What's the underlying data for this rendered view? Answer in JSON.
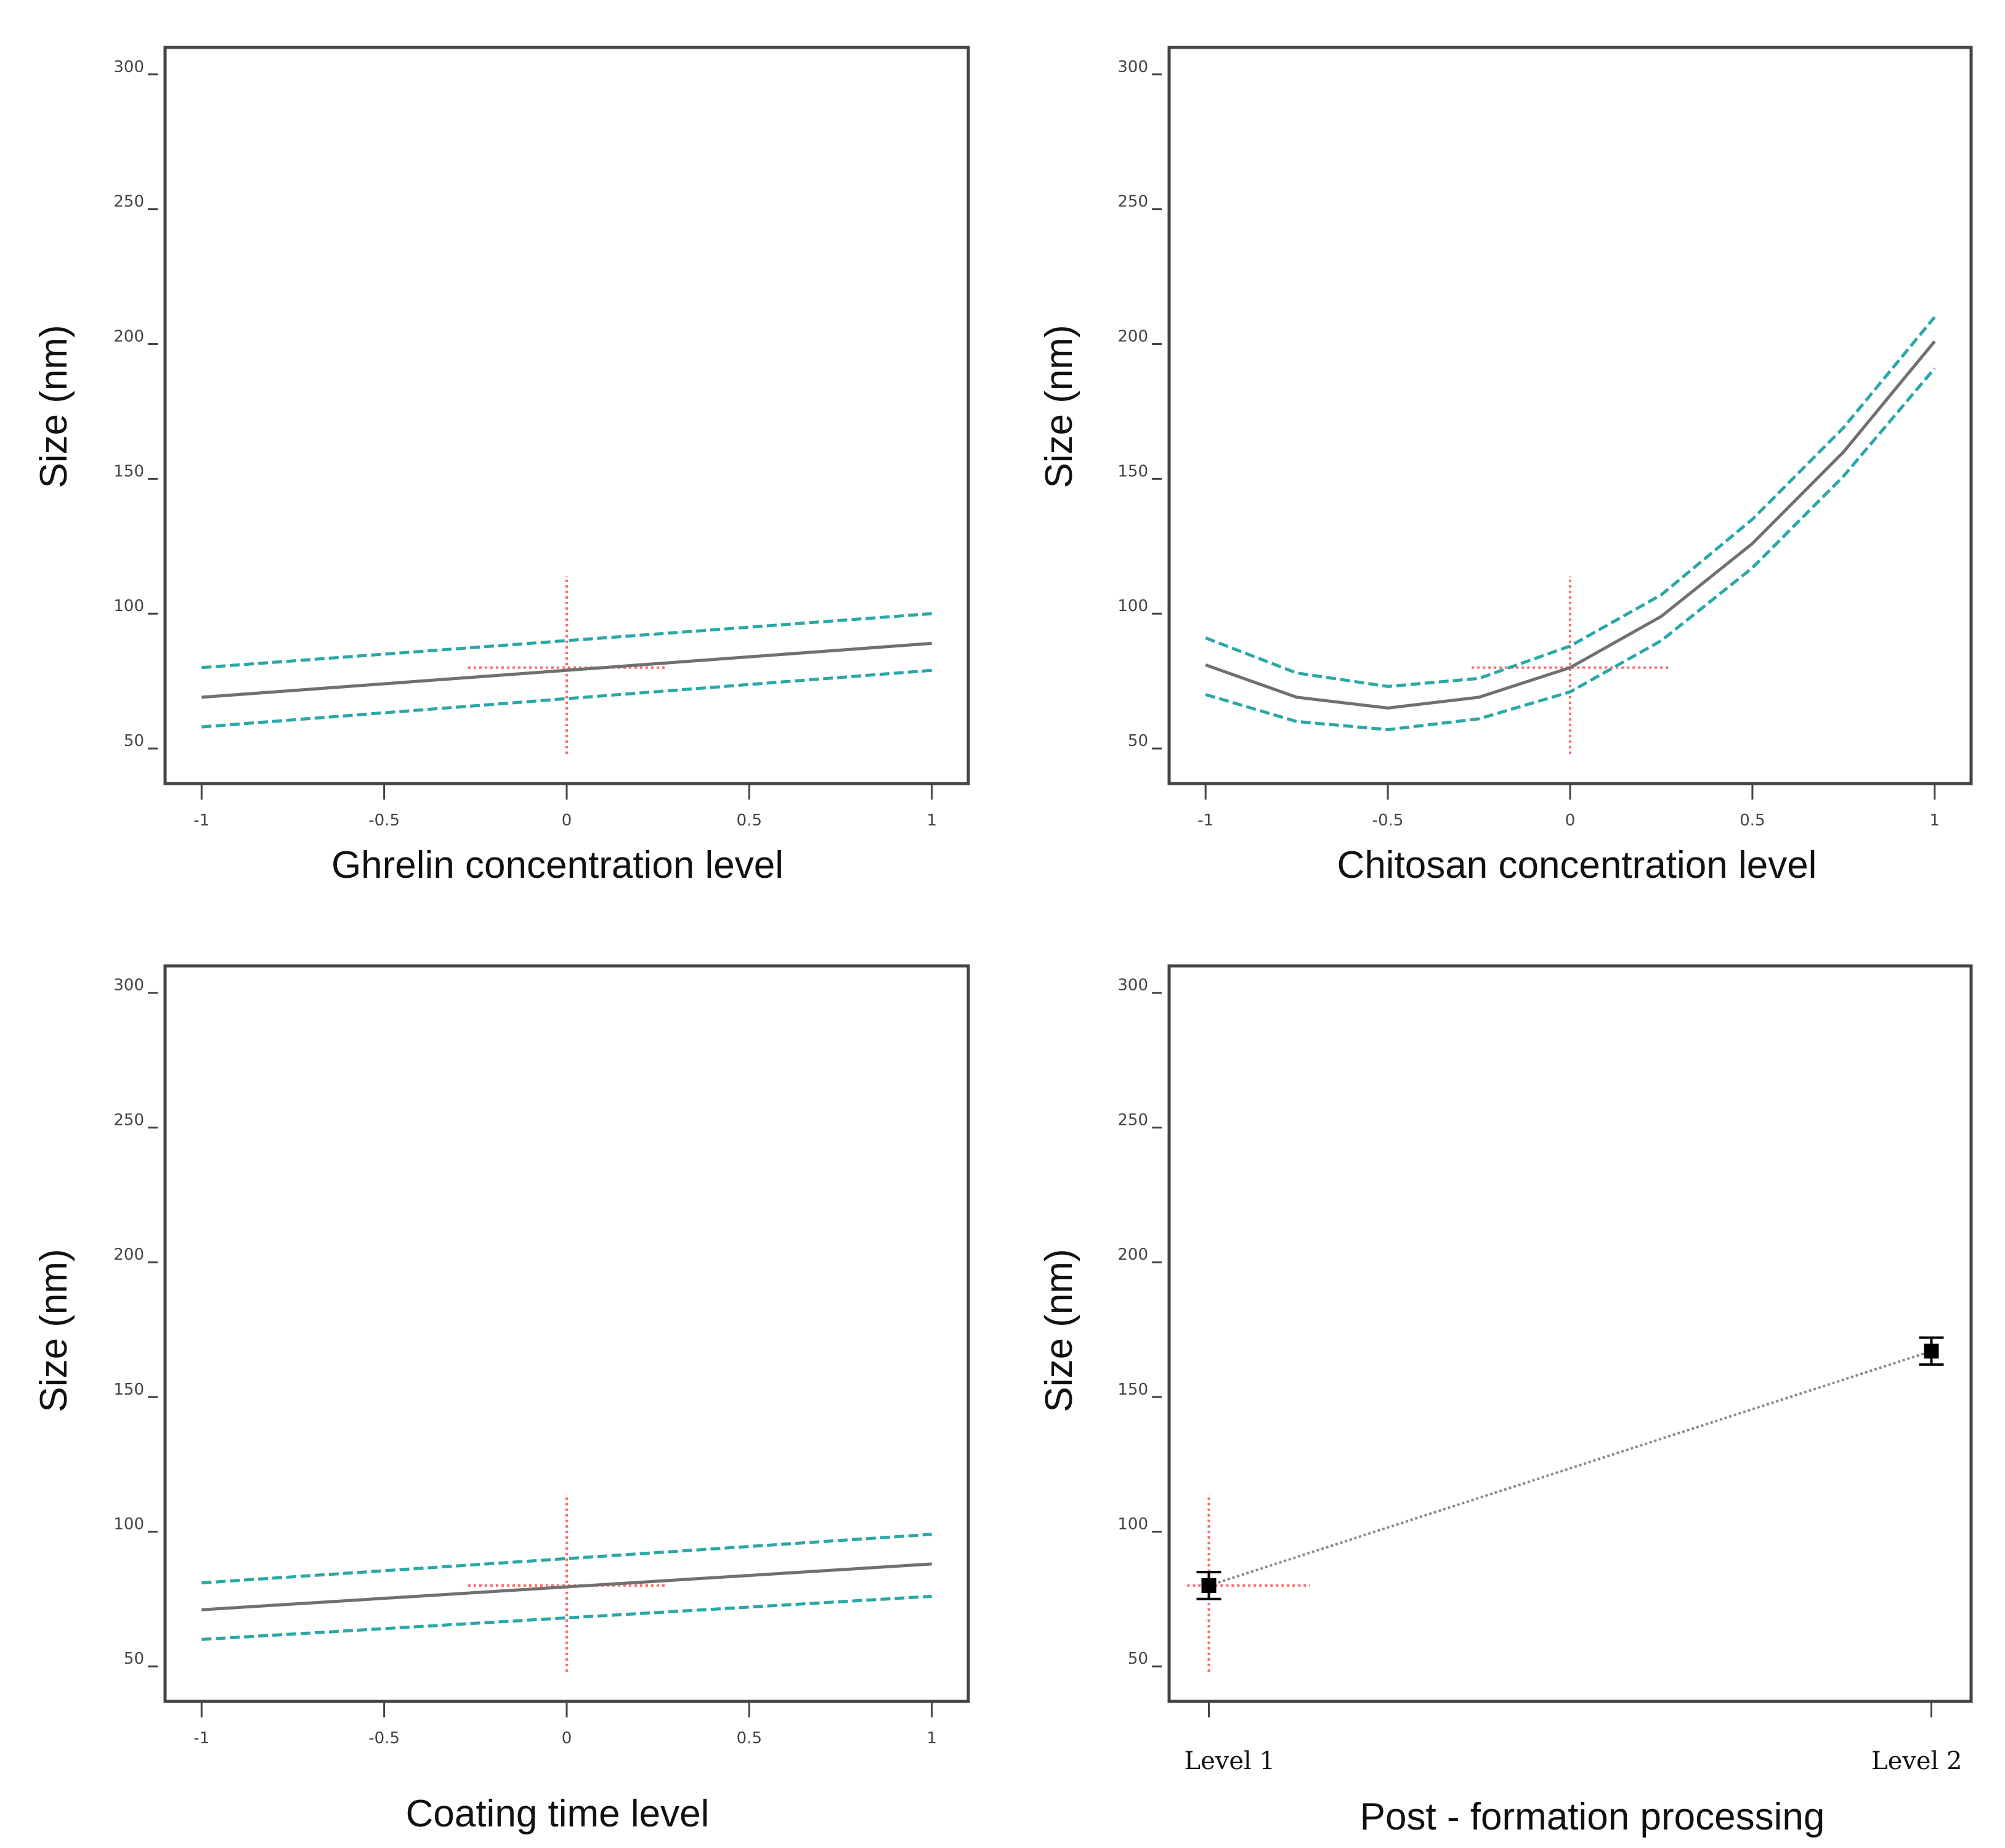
{
  "figure": {
    "colors": {
      "frame": "#444444",
      "fit": "#707070",
      "ci": "#2aa7a7",
      "ref": "#ff6b6b",
      "point": "#000000",
      "connector": "#888888"
    }
  },
  "chart_data": [
    {
      "type": "line",
      "xlabel": "Ghrelin concentration level",
      "ylabel": "Size (nm)",
      "xlim": [
        -1.1,
        1.1
      ],
      "ylim": [
        37,
        310
      ],
      "xticks": [
        -1,
        -0.5,
        0,
        0.5,
        1
      ],
      "xtick_labels": [
        "-1",
        "-0.5",
        "0",
        "0.5",
        "1"
      ],
      "yticks": [
        50,
        100,
        150,
        200,
        250,
        300
      ],
      "ytick_labels": [
        "50",
        "100",
        "150",
        "200",
        "250",
        "300"
      ],
      "grid": false,
      "series": [
        {
          "role": "fit",
          "x": [
            -1,
            1
          ],
          "y": [
            69,
            89
          ]
        },
        {
          "role": "ci-upper",
          "x": [
            -1,
            1
          ],
          "y": [
            80,
            100
          ]
        },
        {
          "role": "ci-lower",
          "x": [
            -1,
            1
          ],
          "y": [
            58,
            79
          ]
        }
      ],
      "reference": {
        "x": 0,
        "y": 80,
        "x_extent": [
          -0.27,
          0.27
        ],
        "y_extent": [
          48,
          114
        ]
      }
    },
    {
      "type": "line",
      "xlabel": "Chitosan concentration level",
      "ylabel": "Size (nm)",
      "xlim": [
        -1.1,
        1.1
      ],
      "ylim": [
        37,
        310
      ],
      "xticks": [
        -1,
        -0.5,
        0,
        0.5,
        1
      ],
      "xtick_labels": [
        "-1",
        "-0.5",
        "0",
        "0.5",
        "1"
      ],
      "yticks": [
        50,
        100,
        150,
        200,
        250,
        300
      ],
      "ytick_labels": [
        "50",
        "100",
        "150",
        "200",
        "250",
        "300"
      ],
      "grid": false,
      "series": [
        {
          "role": "fit",
          "x": [
            -1,
            -0.75,
            -0.5,
            -0.25,
            0,
            0.25,
            0.5,
            0.75,
            1
          ],
          "y": [
            81,
            69,
            65,
            69,
            80,
            99,
            126,
            160,
            201
          ]
        },
        {
          "role": "ci-upper",
          "x": [
            -1,
            -0.75,
            -0.5,
            -0.25,
            0,
            0.25,
            0.5,
            0.75,
            1
          ],
          "y": [
            91,
            78,
            73,
            76,
            88,
            107,
            135,
            169,
            210
          ]
        },
        {
          "role": "ci-lower",
          "x": [
            -1,
            -0.75,
            -0.5,
            -0.25,
            0,
            0.25,
            0.5,
            0.75,
            1
          ],
          "y": [
            70,
            60,
            57,
            61,
            71,
            90,
            117,
            151,
            191
          ]
        }
      ],
      "reference": {
        "x": 0,
        "y": 80,
        "x_extent": [
          -0.27,
          0.27
        ],
        "y_extent": [
          48,
          114
        ]
      }
    },
    {
      "type": "line",
      "xlabel": "Coating time level",
      "ylabel": "Size (nm)",
      "xlim": [
        -1.1,
        1.1
      ],
      "ylim": [
        37,
        310
      ],
      "xticks": [
        -1,
        -0.5,
        0,
        0.5,
        1
      ],
      "xtick_labels": [
        "-1",
        "-0.5",
        "0",
        "0.5",
        "1"
      ],
      "yticks": [
        50,
        100,
        150,
        200,
        250,
        300
      ],
      "ytick_labels": [
        "50",
        "100",
        "150",
        "200",
        "250",
        "300"
      ],
      "grid": false,
      "series": [
        {
          "role": "fit",
          "x": [
            -1,
            1
          ],
          "y": [
            71,
            88
          ]
        },
        {
          "role": "ci-upper",
          "x": [
            -1,
            1
          ],
          "y": [
            81,
            99
          ]
        },
        {
          "role": "ci-lower",
          "x": [
            -1,
            1
          ],
          "y": [
            60,
            76
          ]
        }
      ],
      "reference": {
        "x": 0,
        "y": 80,
        "x_extent": [
          -0.27,
          0.27
        ],
        "y_extent": [
          48,
          114
        ]
      }
    },
    {
      "type": "scatter",
      "xlabel": "Post - formation processing",
      "ylabel": "Size (nm)",
      "xlim": [
        -0.055,
        1.055
      ],
      "ylim": [
        37,
        310
      ],
      "categories": [
        "Level 1",
        "Level 2"
      ],
      "yticks": [
        50,
        100,
        150,
        200,
        250,
        300
      ],
      "ytick_labels": [
        "50",
        "100",
        "150",
        "200",
        "250",
        "300"
      ],
      "grid": false,
      "points": [
        {
          "x": 0,
          "y": 80,
          "error": 5
        },
        {
          "x": 1,
          "y": 167,
          "error": 5
        }
      ],
      "connector": true,
      "reference": {
        "x": 0,
        "y": 80,
        "x_extent": [
          -0.03,
          0.14
        ],
        "y_extent": [
          48,
          114
        ]
      }
    }
  ]
}
